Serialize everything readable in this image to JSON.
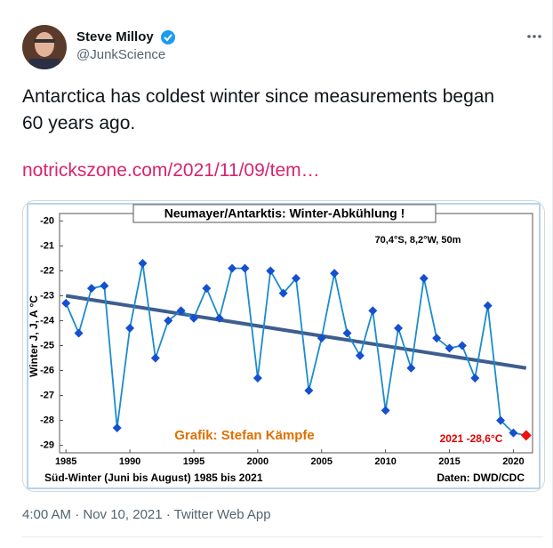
{
  "tweet": {
    "name": "Steve Milloy",
    "handle": "@JunkScience",
    "text": "Antarctica has coldest winter since measurements began 60 years ago.",
    "link": "notrickszone.com/2021/11/09/tem…",
    "footer": "4:00 AM · Nov 10, 2021 · Twitter Web App"
  },
  "chart_data": {
    "type": "line",
    "title": "Neumayer/Antarktis: Winter-Abkühlung !",
    "ylabel": "Winter J, J, A °C",
    "xlabel": "Süd-Winter (Juni bis August) 1985 bis 2021",
    "annotations": {
      "location": "70,4°S, 8,2°W, 50m",
      "credit": "Grafik: Stefan Kämpfe",
      "highlight": "2021 -28,6°C",
      "source": "Daten: DWD/CDC"
    },
    "x": [
      1985,
      1986,
      1987,
      1988,
      1989,
      1990,
      1991,
      1992,
      1993,
      1994,
      1995,
      1996,
      1997,
      1998,
      1999,
      2000,
      2001,
      2002,
      2003,
      2004,
      2005,
      2006,
      2007,
      2008,
      2009,
      2010,
      2011,
      2012,
      2013,
      2014,
      2015,
      2016,
      2017,
      2018,
      2019,
      2020,
      2021
    ],
    "series": [
      {
        "color": "#1c8ccc",
        "marker_color": "#1450d0",
        "last_point_color": "#ee1111",
        "values": [
          -23.3,
          -24.5,
          -22.7,
          -22.6,
          -28.3,
          -24.3,
          -21.7,
          -25.5,
          -24.0,
          -23.6,
          -23.9,
          -22.7,
          -23.9,
          -21.9,
          -21.9,
          -26.3,
          -22.0,
          -22.9,
          -22.3,
          -26.8,
          -24.7,
          -22.1,
          -24.5,
          -25.4,
          -23.6,
          -27.6,
          -24.3,
          -25.9,
          -22.3,
          -24.7,
          -25.1,
          -25.0,
          -26.3,
          -23.4,
          -28.0,
          -28.5,
          -28.6
        ]
      }
    ],
    "trend": {
      "x": [
        1985,
        2021
      ],
      "values": [
        -23.0,
        -25.9
      ],
      "color": "#3d5e8e"
    },
    "xlim": [
      1984.5,
      2021.5
    ],
    "ylim": [
      -29.3,
      -19.7
    ],
    "xticks": [
      1985,
      1990,
      1995,
      2000,
      2005,
      2010,
      2015,
      2020
    ],
    "yticks": [
      -20,
      -21,
      -22,
      -23,
      -24,
      -25,
      -26,
      -27,
      -28,
      -29
    ]
  }
}
